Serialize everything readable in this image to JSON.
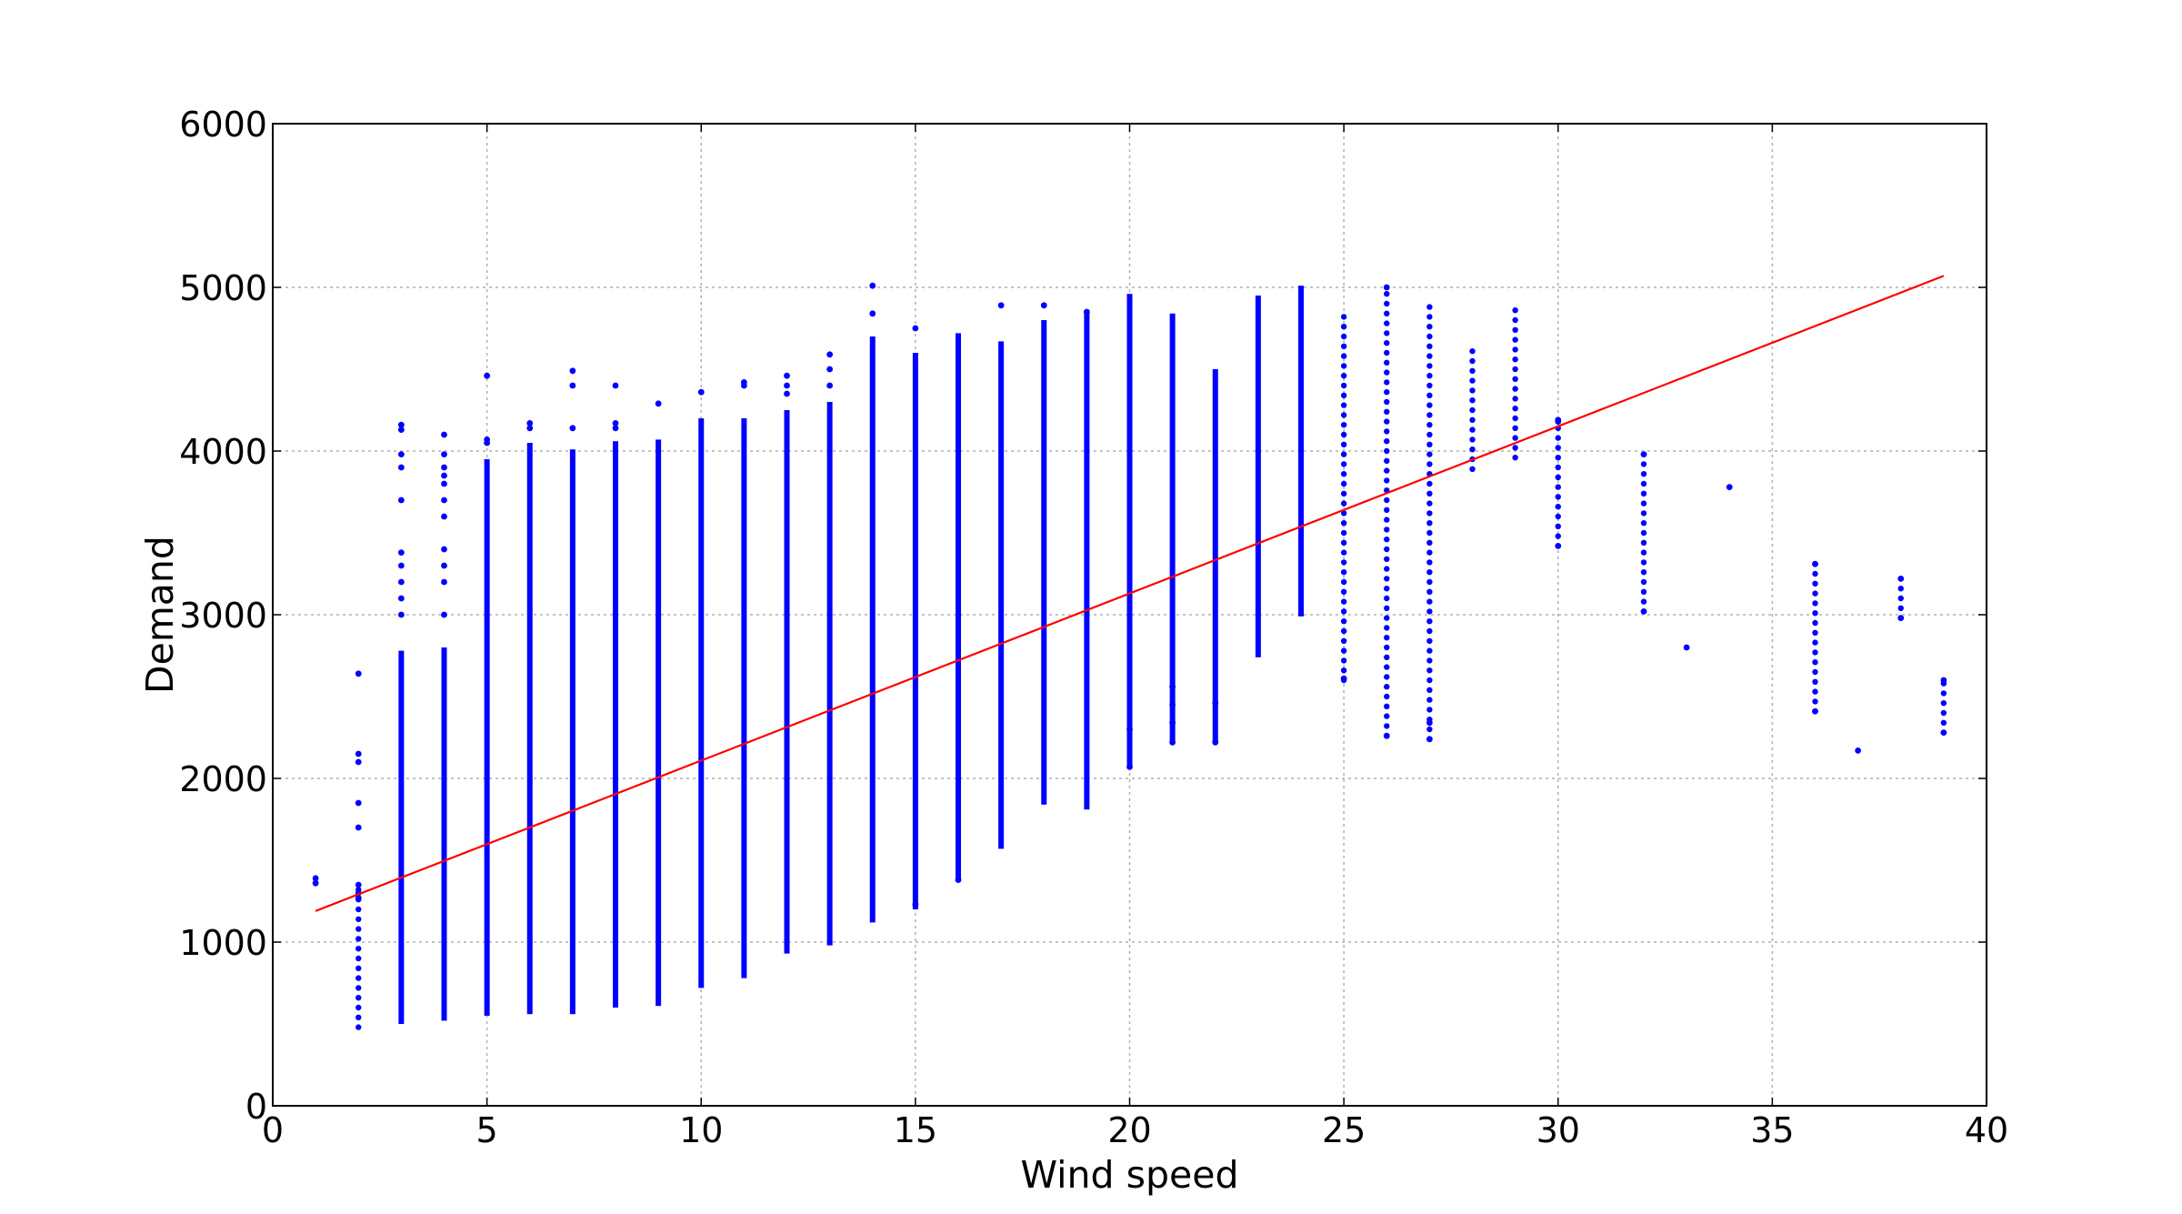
{
  "chart_data": {
    "type": "scatter",
    "title": "",
    "xlabel": "Wind speed",
    "ylabel": "Demand",
    "xlim": [
      0,
      40
    ],
    "ylim": [
      0,
      6000
    ],
    "xticks": [
      0,
      5,
      10,
      15,
      20,
      25,
      30,
      35,
      40
    ],
    "yticks": [
      0,
      1000,
      2000,
      3000,
      4000,
      5000,
      6000
    ],
    "xtick_labels": [
      "0",
      "5",
      "10",
      "15",
      "20",
      "25",
      "30",
      "35",
      "40"
    ],
    "ytick_labels": [
      "0",
      "1000",
      "2000",
      "3000",
      "4000",
      "5000",
      "6000"
    ],
    "grid": true,
    "series": [
      {
        "kind": "scatter",
        "color": "#0000ff",
        "columns": [
          {
            "x": 1,
            "min": 1360,
            "max": 1390,
            "dense": false,
            "outliers": [
              1360,
              1390
            ]
          },
          {
            "x": 2,
            "min": 480,
            "max": 1350,
            "dense": false,
            "outliers": [
              2640,
              2150,
              2100,
              1850,
              1700,
              1350,
              1300,
              1270
            ]
          },
          {
            "x": 3,
            "min": 500,
            "max": 2780,
            "dense": true,
            "outliers": [
              4160,
              4130,
              3980,
              3900,
              3700,
              3380,
              3300,
              3200,
              3100,
              3000
            ]
          },
          {
            "x": 4,
            "min": 520,
            "max": 2800,
            "dense": true,
            "outliers": [
              4100,
              3980,
              3900,
              3850,
              3800,
              3700,
              3600,
              3400,
              3300,
              3200,
              3000
            ]
          },
          {
            "x": 5,
            "min": 550,
            "max": 3950,
            "dense": true,
            "outliers": [
              4460,
              4070,
              4050
            ]
          },
          {
            "x": 6,
            "min": 560,
            "max": 4050,
            "dense": true,
            "outliers": [
              4170,
              4140
            ]
          },
          {
            "x": 7,
            "min": 560,
            "max": 4010,
            "dense": true,
            "outliers": [
              4490,
              4400,
              4140
            ]
          },
          {
            "x": 8,
            "min": 600,
            "max": 4060,
            "dense": true,
            "outliers": [
              4400,
              4170,
              4140
            ]
          },
          {
            "x": 9,
            "min": 610,
            "max": 4070,
            "dense": true,
            "outliers": [
              4290
            ]
          },
          {
            "x": 10,
            "min": 720,
            "max": 4200,
            "dense": true,
            "outliers": [
              4360
            ]
          },
          {
            "x": 11,
            "min": 780,
            "max": 4200,
            "dense": true,
            "outliers": [
              4420,
              4400
            ]
          },
          {
            "x": 12,
            "min": 930,
            "max": 4250,
            "dense": true,
            "outliers": [
              4460,
              4400,
              4350
            ]
          },
          {
            "x": 13,
            "min": 980,
            "max": 4300,
            "dense": true,
            "outliers": [
              4590,
              4500,
              4400
            ]
          },
          {
            "x": 14,
            "min": 1120,
            "max": 4700,
            "dense": true,
            "outliers": [
              5010,
              4840
            ]
          },
          {
            "x": 15,
            "min": 1200,
            "max": 4600,
            "dense": true,
            "outliers": [
              4750,
              1230
            ]
          },
          {
            "x": 16,
            "min": 1380,
            "max": 4720,
            "dense": true,
            "outliers": [
              1380
            ]
          },
          {
            "x": 17,
            "min": 1570,
            "max": 4670,
            "dense": true,
            "outliers": [
              4890
            ]
          },
          {
            "x": 18,
            "min": 1840,
            "max": 4800,
            "dense": true,
            "outliers": [
              4890
            ]
          },
          {
            "x": 19,
            "min": 1810,
            "max": 4860,
            "dense": true,
            "outliers": [
              4850
            ]
          },
          {
            "x": 20,
            "min": 2070,
            "max": 4960,
            "dense": true,
            "outliers": [
              2070,
              2300
            ]
          },
          {
            "x": 21,
            "min": 2220,
            "max": 4840,
            "dense": true,
            "outliers": [
              2220,
              2340,
              2450,
              2560
            ]
          },
          {
            "x": 22,
            "min": 2220,
            "max": 4500,
            "dense": true,
            "outliers": [
              2220,
              2460
            ]
          },
          {
            "x": 23,
            "min": 2740,
            "max": 4950,
            "dense": true,
            "outliers": []
          },
          {
            "x": 24,
            "min": 2990,
            "max": 5010,
            "dense": true,
            "outliers": []
          },
          {
            "x": 25,
            "min": 2600,
            "max": 4860,
            "dense": false,
            "outliers": [
              2610
            ]
          },
          {
            "x": 26,
            "min": 2260,
            "max": 5000,
            "dense": false,
            "outliers": [
              2260,
              5000
            ]
          },
          {
            "x": 27,
            "min": 2240,
            "max": 4910,
            "dense": false,
            "outliers": [
              2240,
              2340
            ]
          },
          {
            "x": 28,
            "min": 3890,
            "max": 4650,
            "dense": false,
            "outliers": []
          },
          {
            "x": 29,
            "min": 3960,
            "max": 4860,
            "dense": false,
            "outliers": []
          },
          {
            "x": 30,
            "min": 3420,
            "max": 4190,
            "dense": false,
            "outliers": [
              3420,
              4180,
              4190
            ]
          },
          {
            "x": 32,
            "min": 3020,
            "max": 3980,
            "dense": false,
            "outliers": [
              3020,
              3980
            ]
          },
          {
            "x": 33,
            "min": 2800,
            "max": 2800,
            "dense": false,
            "outliers": [
              2800
            ]
          },
          {
            "x": 34,
            "min": 3780,
            "max": 3780,
            "dense": false,
            "outliers": [
              3780
            ]
          },
          {
            "x": 36,
            "min": 2410,
            "max": 3310,
            "dense": false,
            "outliers": [
              2410,
              3310
            ]
          },
          {
            "x": 37,
            "min": 2170,
            "max": 2170,
            "dense": false,
            "outliers": [
              2170
            ]
          },
          {
            "x": 38,
            "min": 2980,
            "max": 3220,
            "dense": false,
            "outliers": [
              2980,
              3220
            ]
          },
          {
            "x": 39,
            "min": 2280,
            "max": 2600,
            "dense": false,
            "outliers": [
              2280,
              2600
            ]
          }
        ]
      },
      {
        "kind": "line",
        "color": "#ff0000",
        "x": [
          1,
          39
        ],
        "y": [
          1190,
          5070
        ]
      }
    ]
  }
}
